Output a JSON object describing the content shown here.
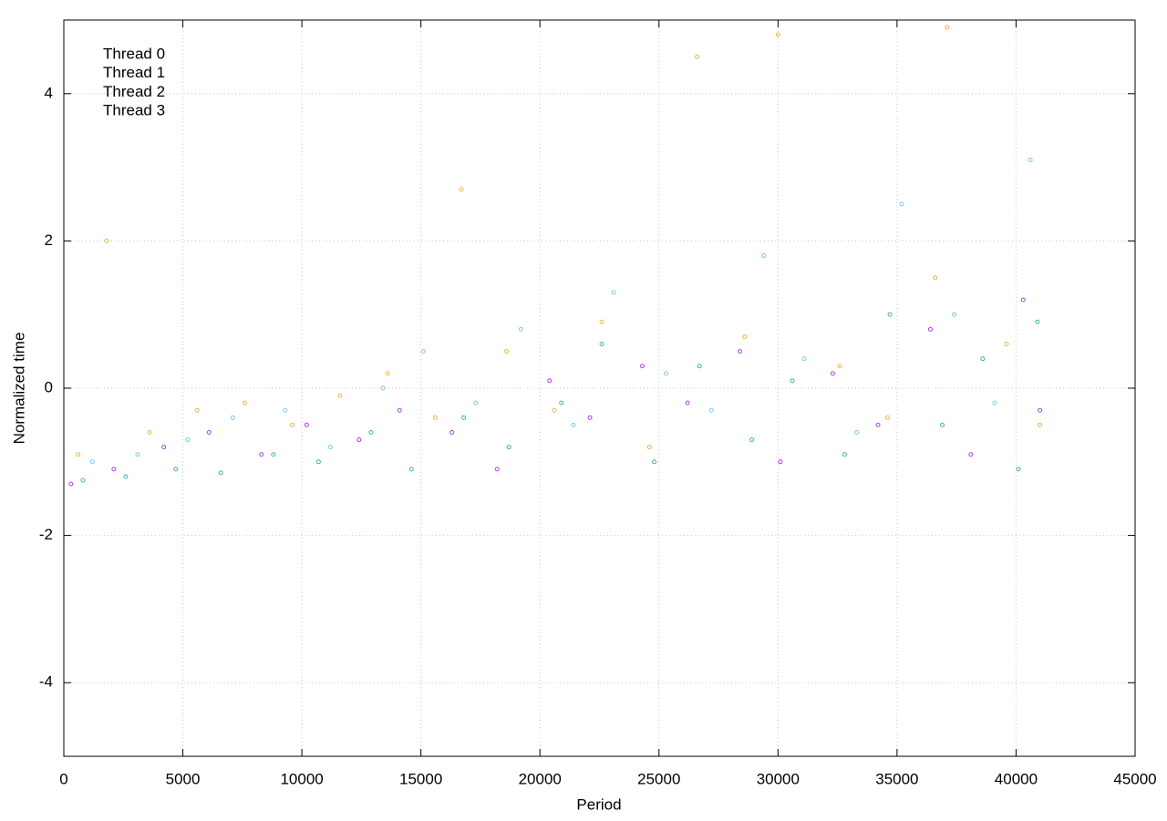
{
  "chart_data": {
    "type": "scatter",
    "x_label": "Period",
    "y_label": "Normalized time",
    "xlim": [
      0,
      45000
    ],
    "xticks": [
      0,
      5000,
      10000,
      15000,
      20000,
      25000,
      30000,
      35000,
      40000,
      45000
    ],
    "ylim": [
      -5,
      5
    ],
    "yticks": [
      -4,
      -2,
      0,
      2,
      4
    ],
    "grid": true,
    "legend": "top-left",
    "series": [
      {
        "name": "Thread 0",
        "color": "#9400d3",
        "x": [
          300,
          2100,
          4200,
          6100,
          8300,
          10200,
          12400,
          14100,
          16300,
          18200,
          20400,
          22100,
          24300,
          26200,
          28400,
          30100,
          32300,
          34200,
          36400,
          38100,
          40300,
          41000
        ],
        "values": [
          -1.3,
          -1.1,
          -0.8,
          -0.6,
          -0.9,
          -0.5,
          -0.7,
          -0.3,
          -0.6,
          -1.1,
          0.1,
          -0.4,
          0.3,
          -0.2,
          0.5,
          -1.0,
          0.2,
          -0.5,
          0.8,
          -0.9,
          1.2,
          -0.3
        ]
      },
      {
        "name": "Thread 1",
        "color": "#009e73",
        "x": [
          800,
          2600,
          4700,
          6600,
          8800,
          10700,
          12900,
          14600,
          16800,
          18700,
          20900,
          22600,
          24800,
          26700,
          28900,
          30600,
          32800,
          34700,
          36900,
          38600,
          40100,
          40900
        ],
        "values": [
          -1.25,
          -1.2,
          -1.1,
          -1.15,
          -0.9,
          -1.0,
          -0.6,
          -1.1,
          -0.4,
          -0.8,
          -0.2,
          0.6,
          -1.0,
          0.3,
          -0.7,
          0.1,
          -0.9,
          1.0,
          -0.5,
          0.4,
          -1.1,
          0.9
        ]
      },
      {
        "name": "Thread 2",
        "color": "#56b4e9",
        "x": [
          1200,
          3100,
          5200,
          7100,
          9300,
          11200,
          13400,
          15100,
          17300,
          19200,
          21400,
          23100,
          25300,
          27200,
          29400,
          31100,
          33300,
          35200,
          37400,
          39100,
          40600
        ],
        "values": [
          -1.0,
          -0.9,
          -0.7,
          -0.4,
          -0.3,
          -0.8,
          0.0,
          0.5,
          -0.2,
          0.8,
          -0.5,
          1.3,
          0.2,
          -0.3,
          1.8,
          0.4,
          -0.6,
          2.5,
          1.0,
          -0.2,
          3.1
        ]
      },
      {
        "name": "Thread 3",
        "color": "#e69f00",
        "x": [
          600,
          1800,
          3600,
          5600,
          7600,
          9600,
          11600,
          13600,
          15600,
          16700,
          18600,
          20600,
          22600,
          24600,
          26600,
          28600,
          30000,
          32600,
          34600,
          36600,
          37100,
          39600,
          41000
        ],
        "values": [
          -0.9,
          2.0,
          -0.6,
          -0.3,
          -0.2,
          -0.5,
          -0.1,
          0.2,
          -0.4,
          2.7,
          0.5,
          -0.3,
          0.9,
          -0.8,
          4.5,
          0.7,
          4.8,
          0.3,
          -0.4,
          1.5,
          4.9,
          0.6,
          -0.5
        ]
      }
    ]
  }
}
